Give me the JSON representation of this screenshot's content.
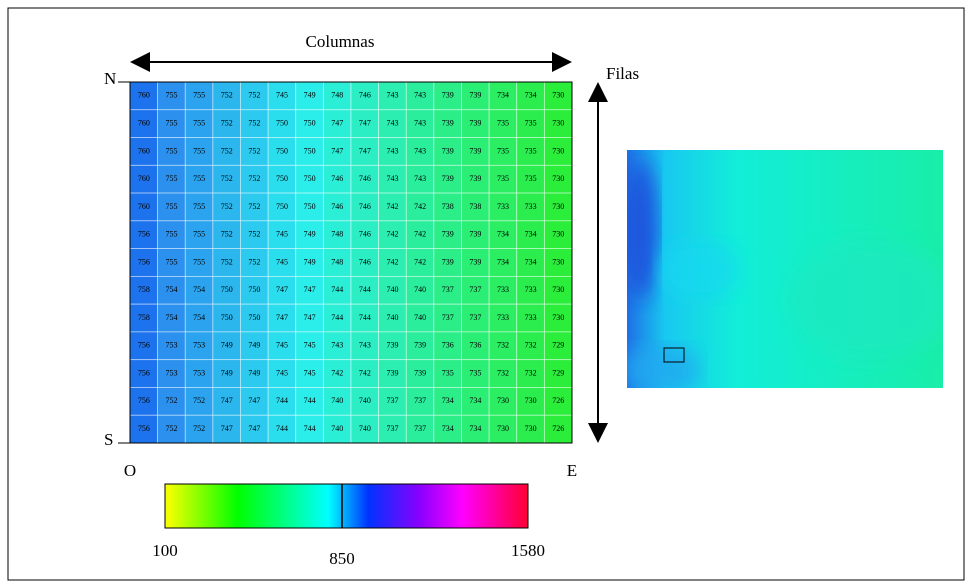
{
  "labels": {
    "columns": "Columnas",
    "rows": "Filas",
    "north": "N",
    "south": "S",
    "west": "O",
    "east": "E"
  },
  "colorbar": {
    "labels": [
      "100",
      "850",
      "1580"
    ]
  },
  "table": {
    "rows": [
      [
        760,
        755,
        755,
        752,
        752,
        745,
        749,
        748,
        746,
        743,
        743,
        739,
        739,
        734,
        734,
        730
      ],
      [
        760,
        755,
        755,
        752,
        752,
        750,
        750,
        747,
        747,
        743,
        743,
        739,
        739,
        735,
        735,
        730
      ],
      [
        760,
        755,
        755,
        752,
        752,
        750,
        750,
        747,
        747,
        743,
        743,
        739,
        739,
        735,
        735,
        730
      ],
      [
        760,
        755,
        755,
        752,
        752,
        750,
        750,
        746,
        746,
        743,
        743,
        739,
        739,
        735,
        735,
        730
      ],
      [
        760,
        755,
        755,
        752,
        752,
        750,
        750,
        746,
        746,
        742,
        742,
        738,
        738,
        733,
        733,
        730
      ],
      [
        756,
        755,
        755,
        752,
        752,
        745,
        749,
        748,
        746,
        742,
        742,
        739,
        739,
        734,
        734,
        730
      ],
      [
        756,
        755,
        755,
        752,
        752,
        745,
        749,
        748,
        746,
        742,
        742,
        739,
        739,
        734,
        734,
        730
      ],
      [
        758,
        754,
        754,
        750,
        750,
        747,
        747,
        744,
        744,
        740,
        740,
        737,
        737,
        733,
        733,
        730
      ],
      [
        758,
        754,
        754,
        750,
        750,
        747,
        747,
        744,
        744,
        740,
        740,
        737,
        737,
        733,
        733,
        730
      ],
      [
        756,
        753,
        753,
        749,
        749,
        745,
        745,
        743,
        743,
        739,
        739,
        736,
        736,
        732,
        732,
        729
      ],
      [
        756,
        753,
        753,
        749,
        749,
        745,
        745,
        742,
        742,
        739,
        739,
        735,
        735,
        732,
        732,
        729
      ],
      [
        756,
        752,
        752,
        747,
        747,
        744,
        744,
        740,
        740,
        737,
        737,
        734,
        734,
        730,
        730,
        726
      ],
      [
        756,
        752,
        752,
        747,
        747,
        744,
        744,
        740,
        740,
        737,
        737,
        734,
        734,
        730,
        730,
        726
      ]
    ]
  }
}
